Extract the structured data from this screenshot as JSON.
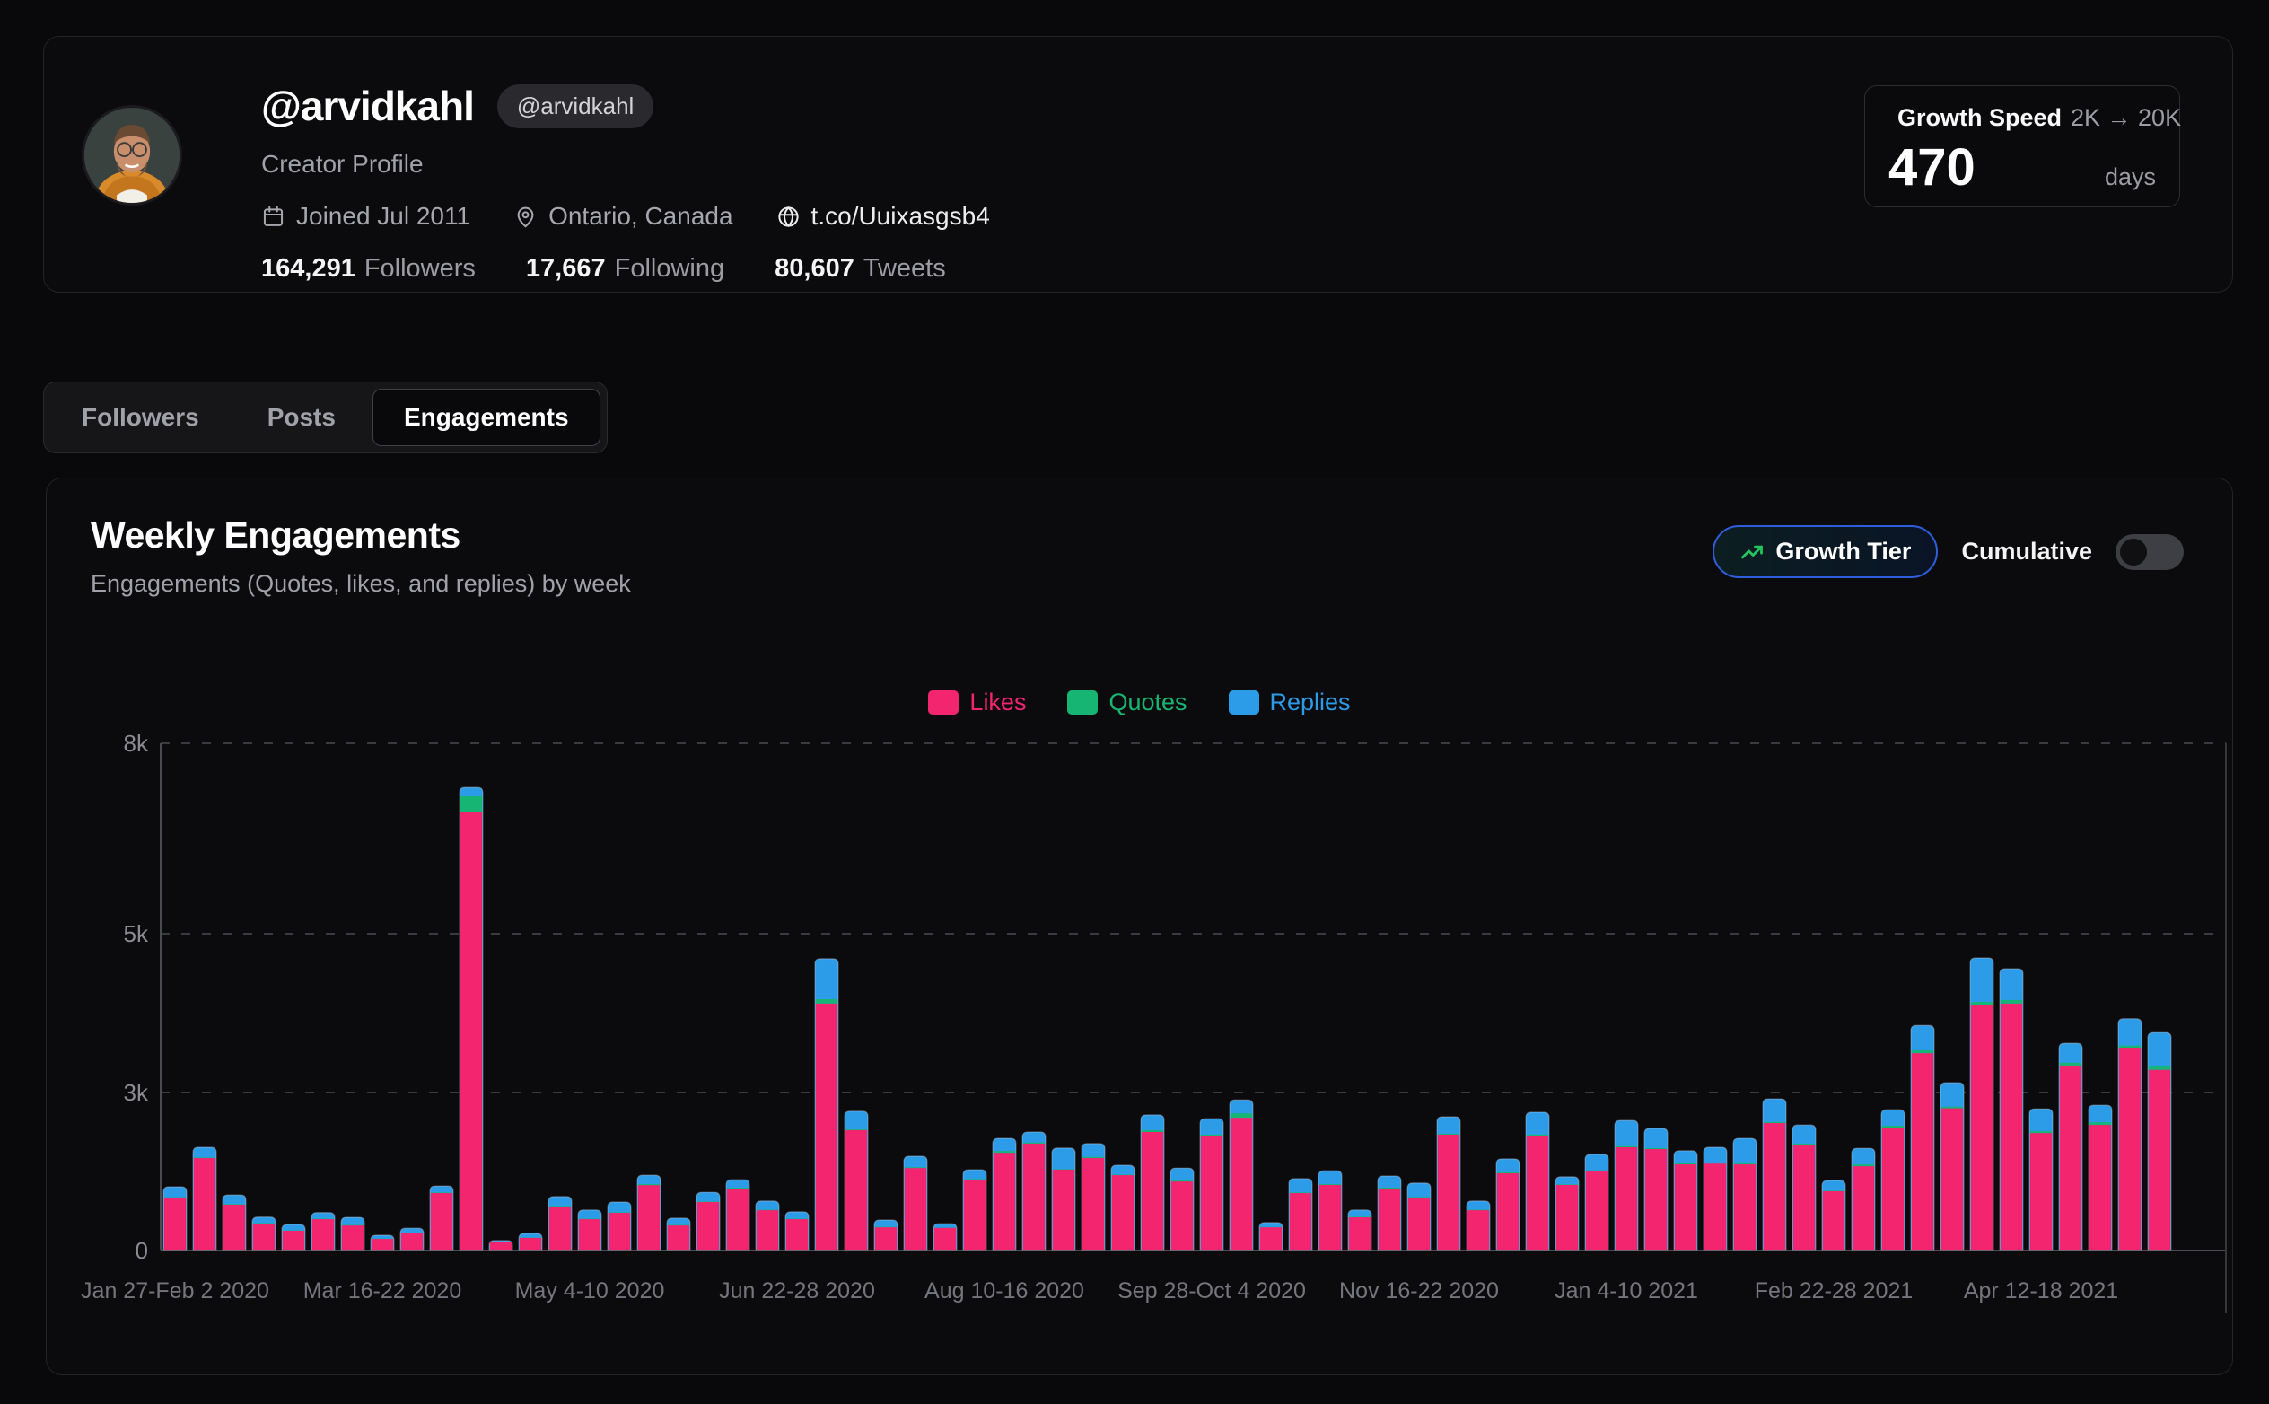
{
  "profile": {
    "name": "@arvidkahl",
    "badge": "@arvidkahl",
    "subtitle": "Creator Profile",
    "joined": "Joined Jul 2011",
    "location": "Ontario, Canada",
    "website": "t.co/Uuixasgsb4",
    "stats": [
      {
        "value": "164,291",
        "label": "Followers"
      },
      {
        "value": "17,667",
        "label": "Following"
      },
      {
        "value": "80,607",
        "label": "Tweets"
      }
    ],
    "growth_speed": {
      "label": "Growth Speed",
      "range": "2K → 20K",
      "value": "470",
      "unit": "days"
    }
  },
  "tabs": [
    {
      "label": "Followers",
      "active": false
    },
    {
      "label": "Posts",
      "active": false
    },
    {
      "label": "Engagements",
      "active": true
    }
  ],
  "chart": {
    "title": "Weekly Engagements",
    "subtitle": "Engagements (Quotes, likes, and replies) by week",
    "growth_tier_label": "Growth Tier",
    "cumulative_label": "Cumulative",
    "legend": [
      {
        "label": "Likes",
        "color": "#F2256E"
      },
      {
        "label": "Quotes",
        "color": "#17B573"
      },
      {
        "label": "Replies",
        "color": "#2D9CE8"
      }
    ]
  },
  "chart_data": {
    "type": "bar",
    "stacked": true,
    "title": "Weekly Engagements",
    "weeks": 68,
    "x_start_week": "Jan 27-Feb 2 2020",
    "x_tick_every": 7,
    "x_tick_labels": [
      {
        "index": 0,
        "label": "Jan 27-Feb 2 2020"
      },
      {
        "index": 7,
        "label": "Mar 16-22 2020"
      },
      {
        "index": 14,
        "label": "May 4-10 2020"
      },
      {
        "index": 21,
        "label": "Jun 22-28 2020"
      },
      {
        "index": 28,
        "label": "Aug 10-16 2020"
      },
      {
        "index": 35,
        "label": "Sep 28-Oct 4 2020"
      },
      {
        "index": 42,
        "label": "Nov 16-22 2020"
      },
      {
        "index": 49,
        "label": "Jan 4-10 2021"
      },
      {
        "index": 56,
        "label": "Feb 22-28 2021"
      },
      {
        "index": 63,
        "label": "Apr 12-18 2021"
      }
    ],
    "y_ticks": [
      0,
      3000,
      5000,
      8000
    ],
    "y_tick_labels": [
      "0",
      "3k",
      "5k",
      "8k"
    ],
    "y_scale": "tiered non-linear (0,3k,5k,8k gridlines roughly evenly spaced)",
    "grid": "dashed horizontal gridlines",
    "legend_position": "top-center",
    "series": [
      {
        "name": "Likes",
        "color": "#F2256E",
        "values": [
          990,
          1755,
          870,
          510,
          375,
          595,
          475,
          220,
          325,
          1090,
          6910,
          160,
          240,
          830,
          595,
          715,
          1240,
          475,
          920,
          1175,
          765,
          595,
          4120,
          2285,
          440,
          1565,
          430,
          1345,
          1855,
          2030,
          1535,
          1755,
          1430,
          2250,
          1310,
          2165,
          2520,
          440,
          1090,
          1245,
          630,
          1175,
          1005,
          2200,
          765,
          1465,
          2180,
          1245,
          1500,
          1960,
          1925,
          1635,
          1650,
          1635,
          2420,
          2010,
          1125,
          1600,
          2335,
          3495,
          2700,
          4105,
          4120,
          2230,
          3340,
          2385,
          3565,
          3285
        ]
      },
      {
        "name": "Quotes",
        "color": "#17B573",
        "values": [
          20,
          10,
          10,
          10,
          5,
          10,
          10,
          5,
          5,
          10,
          255,
          5,
          5,
          15,
          10,
          10,
          20,
          10,
          10,
          15,
          10,
          10,
          55,
          15,
          10,
          15,
          5,
          10,
          35,
          20,
          10,
          20,
          10,
          35,
          35,
          35,
          85,
          5,
          10,
          15,
          10,
          20,
          10,
          15,
          10,
          20,
          20,
          10,
          20,
          20,
          20,
          20,
          20,
          20,
          20,
          20,
          10,
          35,
          35,
          35,
          30,
          35,
          45,
          35,
          35,
          50,
          25,
          45
        ]
      },
      {
        "name": "Replies",
        "color": "#2D9CE8",
        "values": [
          200,
          195,
          175,
          115,
          115,
          115,
          145,
          65,
          95,
          125,
          140,
          25,
          80,
          180,
          165,
          195,
          170,
          130,
          175,
          155,
          165,
          130,
          510,
          345,
          130,
          210,
          75,
          180,
          240,
          200,
          400,
          255,
          180,
          290,
          220,
          305,
          255,
          85,
          265,
          255,
          130,
          220,
          265,
          325,
          165,
          255,
          425,
          145,
          305,
          490,
          375,
          240,
          290,
          475,
          440,
          355,
          195,
          305,
          305,
          315,
          395,
          555,
          395,
          425,
          245,
          325,
          340,
          425
        ]
      }
    ]
  }
}
